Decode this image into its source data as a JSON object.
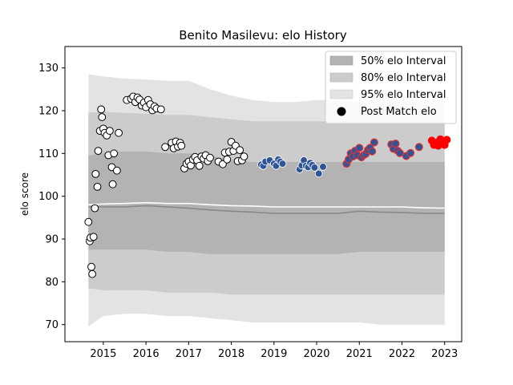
{
  "chart_data": {
    "type": "scatter",
    "title": "Benito Masilevu: elo History",
    "xlabel": "",
    "ylabel": "elo score",
    "xlim": [
      2014.1,
      2023.4
    ],
    "ylim": [
      66,
      135
    ],
    "xticks": [
      "2015",
      "2016",
      "2017",
      "2018",
      "2019",
      "2020",
      "2021",
      "2022",
      "2023"
    ],
    "yticks": [
      "70",
      "80",
      "90",
      "100",
      "110",
      "120",
      "130"
    ],
    "grid": false,
    "legend_position": "top-right",
    "legend": {
      "band50": "50% elo Interval",
      "band80": "80% elo Interval",
      "band95": "95% elo Interval",
      "points": "Post Match elo"
    },
    "colors": {
      "band50": "#b3b3b3",
      "band80": "#cccccc",
      "band95": "#e3e3e3",
      "median_line": "#888888",
      "mean_line": "#ffffff",
      "era1": "#ffffff",
      "era2": "#2f5597",
      "era3": "#2f5597",
      "era3_edge": "#e03030",
      "era4": "#ff0000"
    },
    "bands": {
      "x": [
        2014.65,
        2015.0,
        2015.5,
        2016.0,
        2016.5,
        2017.0,
        2017.5,
        2018.0,
        2018.5,
        2019.0,
        2019.5,
        2020.0,
        2020.5,
        2021.0,
        2021.5,
        2022.0,
        2022.5,
        2023.0
      ],
      "p95_hi": [
        128.5,
        128.0,
        127.5,
        127.3,
        127.0,
        127.0,
        125.0,
        123.5,
        122.5,
        122.0,
        122.0,
        122.5,
        122.5,
        122.0,
        122.0,
        122.0,
        122.0,
        122.0
      ],
      "p80_hi": [
        119.5,
        119.8,
        119.5,
        119.3,
        119.0,
        119.0,
        118.5,
        118.0,
        117.5,
        117.5,
        117.5,
        117.5,
        117.5,
        117.5,
        117.5,
        117.5,
        117.5,
        117.5
      ],
      "p50_hi": [
        109.5,
        110.0,
        110.5,
        110.5,
        110.0,
        110.0,
        109.5,
        108.5,
        108.0,
        108.0,
        108.0,
        108.0,
        108.0,
        108.0,
        108.0,
        108.0,
        108.0,
        108.0
      ],
      "p50_lo": [
        87.5,
        87.5,
        87.5,
        87.5,
        87.0,
        87.0,
        86.5,
        86.5,
        86.5,
        86.5,
        86.5,
        86.5,
        86.5,
        87.0,
        87.0,
        87.0,
        87.0,
        87.0
      ],
      "p80_lo": [
        78.5,
        78.0,
        78.0,
        78.0,
        77.5,
        77.5,
        77.5,
        77.0,
        77.0,
        77.0,
        77.0,
        77.0,
        77.0,
        77.0,
        77.0,
        77.0,
        77.0,
        77.0
      ],
      "p95_lo": [
        69.5,
        72.0,
        72.5,
        72.5,
        72.0,
        72.0,
        71.5,
        71.0,
        70.5,
        70.5,
        70.5,
        70.5,
        70.5,
        70.5,
        70.0,
        70.0,
        70.0,
        70.0
      ],
      "median": [
        97.5,
        97.5,
        97.5,
        97.8,
        97.5,
        97.2,
        96.8,
        96.5,
        96.3,
        96.0,
        96.0,
        96.0,
        96.0,
        96.5,
        96.3,
        96.2,
        96.0,
        96.0
      ],
      "mean": [
        98.0,
        98.2,
        98.3,
        98.5,
        98.3,
        98.3,
        98.0,
        97.8,
        97.7,
        97.5,
        97.5,
        97.5,
        97.5,
        97.5,
        97.5,
        97.5,
        97.3,
        97.2
      ]
    },
    "series": [
      {
        "era": "era1",
        "points": [
          [
            2014.65,
            94.0
          ],
          [
            2014.68,
            89.5
          ],
          [
            2014.7,
            90.3
          ],
          [
            2014.72,
            83.5
          ],
          [
            2014.74,
            81.8
          ],
          [
            2014.77,
            90.5
          ],
          [
            2014.8,
            97.2
          ],
          [
            2014.82,
            105.2
          ],
          [
            2014.86,
            102.2
          ],
          [
            2014.88,
            110.6
          ],
          [
            2014.92,
            115.3
          ],
          [
            2014.95,
            120.3
          ],
          [
            2014.97,
            118.5
          ],
          [
            2015.0,
            115.8
          ],
          [
            2015.03,
            114.8
          ],
          [
            2015.08,
            114.2
          ],
          [
            2015.12,
            109.6
          ],
          [
            2015.15,
            115.3
          ],
          [
            2015.2,
            106.8
          ],
          [
            2015.22,
            102.8
          ],
          [
            2015.25,
            110.0
          ],
          [
            2015.32,
            106.0
          ],
          [
            2015.36,
            114.8
          ],
          [
            2015.55,
            122.5
          ],
          [
            2015.65,
            122.8
          ],
          [
            2015.7,
            123.3
          ],
          [
            2015.75,
            122.0
          ],
          [
            2015.8,
            123.1
          ],
          [
            2015.85,
            122.6
          ],
          [
            2015.9,
            121.2
          ],
          [
            2015.95,
            121.9
          ],
          [
            2016.0,
            120.8
          ],
          [
            2016.05,
            122.5
          ],
          [
            2016.1,
            121.5
          ],
          [
            2016.15,
            120.1
          ],
          [
            2016.2,
            121.0
          ],
          [
            2016.25,
            120.5
          ],
          [
            2016.35,
            120.3
          ],
          [
            2016.45,
            111.5
          ],
          [
            2016.6,
            112.5
          ],
          [
            2016.65,
            111.2
          ],
          [
            2016.7,
            112.8
          ],
          [
            2016.75,
            111.6
          ],
          [
            2016.8,
            112.5
          ],
          [
            2016.83,
            111.8
          ],
          [
            2016.9,
            106.5
          ],
          [
            2016.95,
            107.6
          ],
          [
            2017.0,
            108.1
          ],
          [
            2017.05,
            107.2
          ],
          [
            2017.1,
            108.6
          ],
          [
            2017.15,
            109.2
          ],
          [
            2017.2,
            108.4
          ],
          [
            2017.25,
            107.1
          ],
          [
            2017.3,
            109.3
          ],
          [
            2017.35,
            108.8
          ],
          [
            2017.4,
            109.6
          ],
          [
            2017.45,
            108.2
          ],
          [
            2017.5,
            109.0
          ],
          [
            2017.7,
            108.1
          ],
          [
            2017.8,
            107.5
          ],
          [
            2017.85,
            110.2
          ],
          [
            2017.9,
            108.6
          ],
          [
            2017.95,
            110.4
          ],
          [
            2018.0,
            112.7
          ],
          [
            2018.05,
            110.6
          ],
          [
            2018.1,
            111.8
          ],
          [
            2018.15,
            108.2
          ],
          [
            2018.2,
            110.8
          ],
          [
            2018.25,
            108.4
          ],
          [
            2018.3,
            109.3
          ]
        ]
      },
      {
        "era": "era2",
        "points": [
          [
            2018.7,
            107.4
          ],
          [
            2018.75,
            107.1
          ],
          [
            2018.8,
            108.1
          ],
          [
            2018.9,
            108.4
          ],
          [
            2019.0,
            107.6
          ],
          [
            2019.05,
            107.1
          ],
          [
            2019.1,
            108.6
          ],
          [
            2019.15,
            108.1
          ],
          [
            2019.2,
            107.6
          ],
          [
            2019.6,
            106.3
          ],
          [
            2019.65,
            107.2
          ],
          [
            2019.7,
            108.4
          ],
          [
            2019.75,
            107.1
          ],
          [
            2019.8,
            106.8
          ],
          [
            2019.85,
            107.8
          ],
          [
            2019.9,
            107.3
          ],
          [
            2019.95,
            106.7
          ],
          [
            2020.05,
            105.3
          ],
          [
            2020.15,
            106.9
          ]
        ]
      },
      {
        "era": "era3",
        "points": [
          [
            2020.7,
            107.6
          ],
          [
            2020.75,
            108.6
          ],
          [
            2020.8,
            110.0
          ],
          [
            2020.85,
            109.3
          ],
          [
            2020.9,
            110.6
          ],
          [
            2020.95,
            109.6
          ],
          [
            2021.0,
            111.3
          ],
          [
            2021.05,
            109.1
          ],
          [
            2021.1,
            109.6
          ],
          [
            2021.15,
            109.9
          ],
          [
            2021.2,
            110.8
          ],
          [
            2021.25,
            111.3
          ],
          [
            2021.3,
            110.5
          ],
          [
            2021.35,
            112.6
          ],
          [
            2021.75,
            112.1
          ],
          [
            2021.8,
            111.1
          ],
          [
            2021.85,
            112.3
          ],
          [
            2021.9,
            110.6
          ],
          [
            2021.95,
            110.1
          ],
          [
            2022.1,
            109.4
          ],
          [
            2022.2,
            110.1
          ],
          [
            2022.4,
            111.5
          ]
        ]
      },
      {
        "era": "era4",
        "points": [
          [
            2022.7,
            113.0
          ],
          [
            2022.75,
            112.0
          ],
          [
            2022.8,
            112.5
          ],
          [
            2022.85,
            111.8
          ],
          [
            2022.9,
            113.3
          ],
          [
            2022.95,
            112.6
          ],
          [
            2023.0,
            112.0
          ],
          [
            2023.05,
            113.2
          ]
        ]
      }
    ]
  }
}
